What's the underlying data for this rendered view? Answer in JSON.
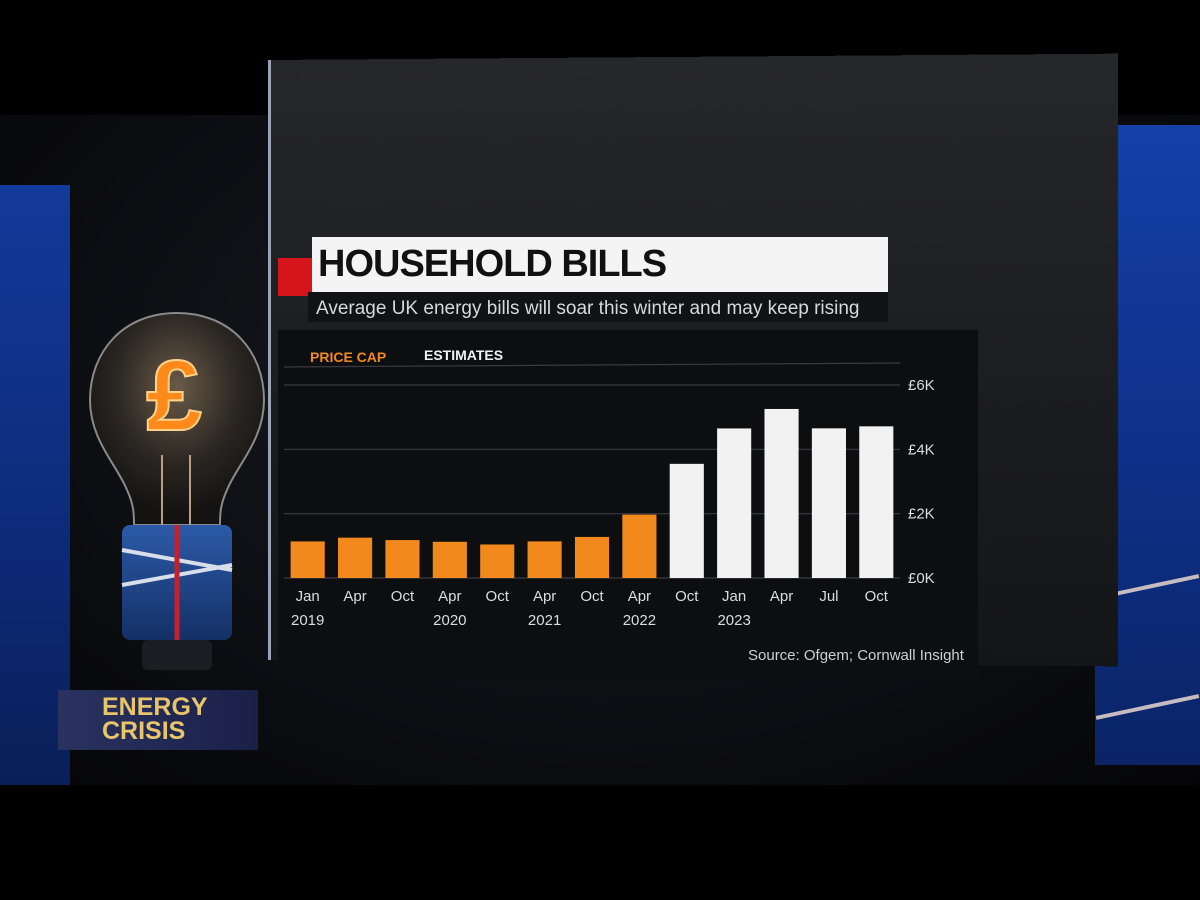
{
  "overlay": {
    "badge_line1": "ENERGY",
    "badge_line2": "CRISIS"
  },
  "colors": {
    "price_cap": "#f2891d",
    "estimates": "#f2f2f2",
    "accent_red": "#d5141b"
  },
  "icons": {
    "bulb": "pound-lightbulb-icon"
  },
  "chart_data": {
    "type": "bar",
    "title": "HOUSEHOLD BILLS",
    "subtitle": "Average UK energy bills will soar this winter and may keep rising",
    "source": "Source: Ofgem; Cornwall Insight",
    "legend": [
      "PRICE CAP",
      "ESTIMATES"
    ],
    "legend_placement": "top-left",
    "y_axis_side": "right",
    "grid": true,
    "ylim": [
      0,
      6000
    ],
    "yticks": [
      0,
      2000,
      4000,
      6000
    ],
    "ytick_labels": [
      "£0K",
      "£2K",
      "£4K",
      "£6K"
    ],
    "categories": [
      {
        "month": "Jan",
        "year": "2019"
      },
      {
        "month": "Apr",
        "year": ""
      },
      {
        "month": "Oct",
        "year": ""
      },
      {
        "month": "Apr",
        "year": "2020"
      },
      {
        "month": "Oct",
        "year": ""
      },
      {
        "month": "Apr",
        "year": "2021"
      },
      {
        "month": "Oct",
        "year": ""
      },
      {
        "month": "Apr",
        "year": "2022"
      },
      {
        "month": "Oct",
        "year": ""
      },
      {
        "month": "Jan",
        "year": "2023"
      },
      {
        "month": "Apr",
        "year": ""
      },
      {
        "month": "Jul",
        "year": ""
      },
      {
        "month": "Oct",
        "year": ""
      }
    ],
    "series": [
      {
        "name": "PRICE CAP",
        "values": [
          1137,
          1254,
          1179,
          1126,
          1042,
          1138,
          1277,
          1971,
          null,
          null,
          null,
          null,
          null
        ]
      },
      {
        "name": "ESTIMATES",
        "values": [
          null,
          null,
          null,
          null,
          null,
          null,
          null,
          null,
          3549,
          4650,
          5255,
          4653,
          4715
        ]
      }
    ]
  }
}
